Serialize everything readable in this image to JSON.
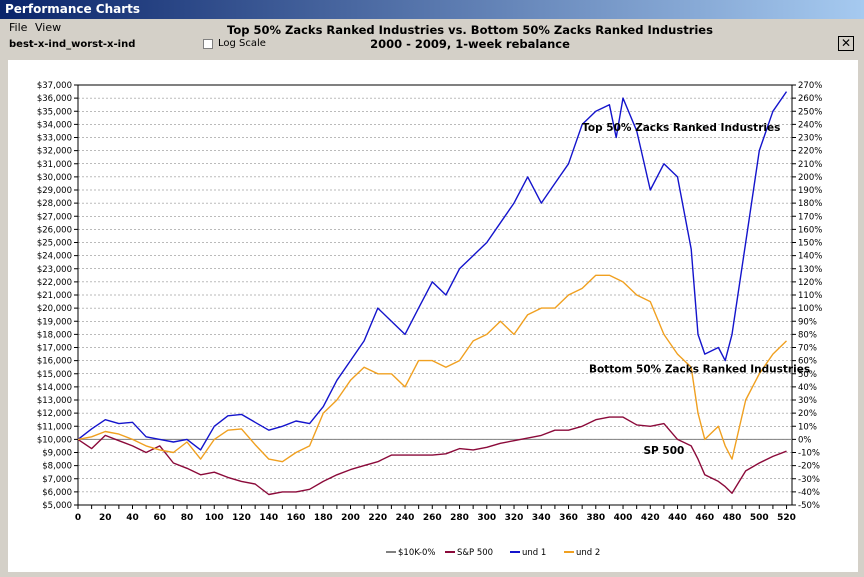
{
  "window": {
    "title": "Performance Charts"
  },
  "menu": {
    "items": [
      "File",
      "View"
    ]
  },
  "toolbar": {
    "strategy": "best-x-ind_worst-x-ind",
    "log_scale_label": "Log Scale",
    "log_scale_checked": false
  },
  "chart_data": {
    "type": "line",
    "title": "Top 50% Zacks Ranked Industries vs. Bottom 50% Zacks Ranked Industries",
    "subtitle": "2000 - 2009, 1-week rebalance",
    "xlim": [
      0,
      524
    ],
    "ylim": [
      5000,
      37000
    ],
    "y2lim": [
      -50,
      270
    ],
    "x_ticks": [
      0,
      10,
      20,
      30,
      40,
      50,
      60,
      70,
      80,
      90,
      100,
      110,
      120,
      130,
      140,
      150,
      160,
      170,
      180,
      190,
      200,
      210,
      220,
      230,
      240,
      250,
      260,
      270,
      280,
      290,
      300,
      310,
      320,
      330,
      340,
      350,
      360,
      370,
      380,
      390,
      400,
      410,
      420,
      430,
      440,
      450,
      460,
      470,
      480,
      490,
      500,
      510,
      520
    ],
    "x_tick_labels": [
      "0",
      "",
      "20",
      "",
      "40",
      "",
      "60",
      "",
      "80",
      "",
      "100",
      "",
      "120",
      "",
      "140",
      "",
      "160",
      "",
      "180",
      "",
      "200",
      "",
      "220",
      "",
      "240",
      "",
      "260",
      "",
      "280",
      "",
      "300",
      "",
      "320",
      "",
      "340",
      "",
      "360",
      "",
      "380",
      "",
      "400",
      "",
      "420",
      "",
      "440",
      "",
      "460",
      "",
      "480",
      "",
      "500",
      "",
      "520"
    ],
    "y_ticks": [
      5000,
      6000,
      7000,
      8000,
      9000,
      10000,
      11000,
      12000,
      13000,
      14000,
      15000,
      16000,
      17000,
      18000,
      19000,
      20000,
      21000,
      22000,
      23000,
      24000,
      25000,
      26000,
      27000,
      28000,
      29000,
      30000,
      31000,
      32000,
      33000,
      34000,
      35000,
      36000,
      37000
    ],
    "y_tick_labels": [
      "$5,000",
      "$6,000",
      "$7,000",
      "$8,000",
      "$9,000",
      "$10,000",
      "$11,000",
      "$12,000",
      "$13,000",
      "$14,000",
      "$15,000",
      "$16,000",
      "$17,000",
      "$18,000",
      "$19,000",
      "$20,000",
      "$21,000",
      "$22,000",
      "$23,000",
      "$24,000",
      "$25,000",
      "$26,000",
      "$27,000",
      "$28,000",
      "$29,000",
      "$30,000",
      "$31,000",
      "$32,000",
      "$33,000",
      "$34,000",
      "$35,000",
      "$36,000",
      "$37,000"
    ],
    "y2_ticks": [
      -50,
      -40,
      -30,
      -20,
      -10,
      0,
      10,
      20,
      30,
      40,
      50,
      60,
      70,
      80,
      90,
      100,
      110,
      120,
      130,
      140,
      150,
      160,
      170,
      180,
      190,
      200,
      210,
      220,
      230,
      240,
      250,
      260,
      270
    ],
    "y2_tick_labels": [
      "-50%",
      "-40%",
      "-30%",
      "-20%",
      "-10%",
      "0%",
      "10%",
      "20%",
      "30%",
      "40%",
      "50%",
      "60%",
      "70%",
      "80%",
      "90%",
      "100%",
      "110%",
      "120%",
      "130%",
      "140%",
      "150%",
      "160%",
      "170%",
      "180%",
      "190%",
      "200%",
      "210%",
      "220%",
      "230%",
      "240%",
      "250%",
      "260%",
      "270%"
    ],
    "grid": true,
    "legend_placement": "bottom",
    "annotations": [
      {
        "text": "Top 50% Zacks Ranked Industries",
        "x": 370,
        "y": 33500
      },
      {
        "text": "Bottom 50% Zacks Ranked Industries",
        "x": 375,
        "y": 15100
      },
      {
        "text": "SP 500",
        "x": 415,
        "y": 8900
      }
    ],
    "series": [
      {
        "name": "$10K-0%",
        "color": "#808080",
        "x": [
          0,
          524
        ],
        "y": [
          10000,
          10000
        ]
      },
      {
        "name": "S&P 500",
        "color": "#8b0a3a",
        "x": [
          0,
          10,
          20,
          30,
          40,
          50,
          60,
          70,
          80,
          90,
          100,
          110,
          120,
          130,
          140,
          150,
          160,
          170,
          180,
          190,
          200,
          210,
          220,
          230,
          240,
          250,
          260,
          270,
          280,
          290,
          300,
          310,
          320,
          330,
          340,
          350,
          360,
          370,
          380,
          390,
          400,
          410,
          420,
          430,
          440,
          450,
          455,
          460,
          470,
          475,
          480,
          490,
          500,
          510,
          520
        ],
        "y": [
          10000,
          9300,
          10300,
          9900,
          9500,
          9000,
          9500,
          8200,
          7800,
          7300,
          7500,
          7100,
          6800,
          6600,
          5800,
          6000,
          6000,
          6200,
          6800,
          7300,
          7700,
          8000,
          8300,
          8800,
          8800,
          8800,
          8800,
          8900,
          9300,
          9200,
          9400,
          9700,
          9900,
          10100,
          10300,
          10700,
          10700,
          11000,
          11500,
          11700,
          11700,
          11100,
          11000,
          11200,
          10000,
          9500,
          8500,
          7300,
          6800,
          6400,
          5900,
          7600,
          8200,
          8700,
          9100
        ]
      },
      {
        "name": "und  1",
        "color": "#1414cc",
        "x": [
          0,
          10,
          20,
          30,
          40,
          50,
          60,
          70,
          80,
          90,
          100,
          110,
          120,
          130,
          140,
          150,
          160,
          170,
          180,
          190,
          200,
          210,
          220,
          230,
          240,
          250,
          260,
          270,
          280,
          290,
          300,
          310,
          320,
          330,
          340,
          350,
          360,
          370,
          380,
          390,
          395,
          400,
          410,
          420,
          430,
          440,
          450,
          455,
          460,
          470,
          475,
          480,
          490,
          500,
          510,
          520
        ],
        "y": [
          10000,
          10800,
          11500,
          11200,
          11300,
          10200,
          10000,
          9800,
          10000,
          9200,
          11000,
          11800,
          11900,
          11300,
          10700,
          11000,
          11400,
          11200,
          12500,
          14500,
          16000,
          17500,
          20000,
          19000,
          18000,
          20000,
          22000,
          21000,
          23000,
          24000,
          25000,
          26500,
          28000,
          30000,
          28000,
          29500,
          31000,
          34000,
          35000,
          35500,
          33000,
          36000,
          33500,
          29000,
          31000,
          30000,
          24500,
          18000,
          16500,
          17000,
          16000,
          18000,
          25000,
          32000,
          35000,
          36500
        ]
      },
      {
        "name": "und  2",
        "color": "#f0a020",
        "x": [
          0,
          10,
          20,
          30,
          40,
          50,
          60,
          70,
          80,
          90,
          100,
          110,
          120,
          130,
          140,
          150,
          160,
          170,
          180,
          190,
          200,
          210,
          220,
          230,
          240,
          250,
          260,
          270,
          280,
          290,
          300,
          310,
          320,
          330,
          340,
          350,
          360,
          370,
          380,
          390,
          400,
          410,
          420,
          430,
          440,
          450,
          455,
          460,
          470,
          475,
          480,
          490,
          500,
          510,
          520
        ],
        "y": [
          10000,
          10200,
          10600,
          10400,
          10000,
          9500,
          9200,
          9000,
          9800,
          8500,
          10000,
          10700,
          10800,
          9600,
          8500,
          8300,
          9000,
          9500,
          12000,
          13000,
          14500,
          15500,
          15000,
          15000,
          14000,
          16000,
          16000,
          15500,
          16000,
          17500,
          18000,
          19000,
          18000,
          19500,
          20000,
          20000,
          21000,
          21500,
          22500,
          22500,
          22000,
          21000,
          20500,
          18000,
          16500,
          15500,
          12000,
          10000,
          11000,
          9500,
          8500,
          13000,
          15000,
          16500,
          17500
        ]
      }
    ]
  }
}
